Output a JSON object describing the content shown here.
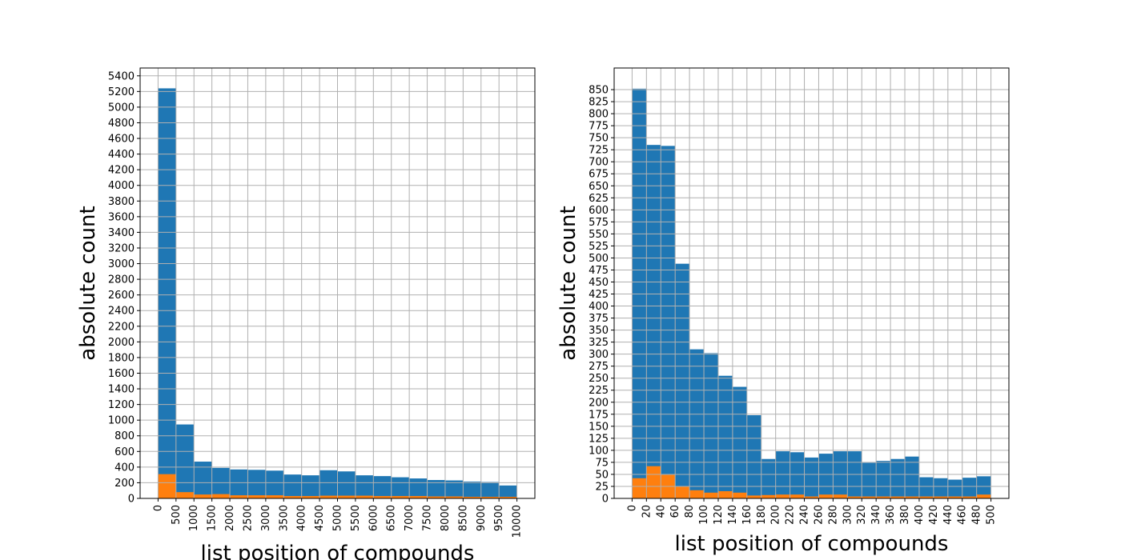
{
  "chart_data": [
    {
      "type": "bar",
      "histogram": true,
      "stacked": true,
      "xlabel": "list position of compounds",
      "ylabel": "absolute count",
      "xlim": [
        -500,
        10500
      ],
      "ylim": [
        0,
        5500
      ],
      "grid": true,
      "bin_edges": [
        0,
        500,
        1000,
        1500,
        2000,
        2500,
        3000,
        3500,
        4000,
        4500,
        5000,
        5500,
        6000,
        6500,
        7000,
        7500,
        8000,
        8500,
        9000,
        9500,
        10000
      ],
      "x_ticks": [
        0,
        500,
        1000,
        1500,
        2000,
        2500,
        3000,
        3500,
        4000,
        4500,
        5000,
        5500,
        6000,
        6500,
        7000,
        7500,
        8000,
        8500,
        9000,
        9500,
        10000
      ],
      "y_ticks": [
        0,
        200,
        400,
        600,
        800,
        1000,
        1200,
        1400,
        1600,
        1800,
        2000,
        2200,
        2400,
        2600,
        2800,
        3000,
        3200,
        3400,
        3600,
        3800,
        4000,
        4200,
        4400,
        4600,
        4800,
        5000,
        5200,
        5400
      ],
      "series": [
        {
          "color": "#1f77b4",
          "values": [
            5240,
            945,
            470,
            390,
            370,
            365,
            355,
            305,
            295,
            360,
            345,
            295,
            285,
            270,
            255,
            235,
            230,
            215,
            210,
            165
          ]
        },
        {
          "color": "#ff7f0e",
          "values": [
            310,
            80,
            50,
            55,
            40,
            40,
            40,
            30,
            30,
            35,
            35,
            35,
            30,
            30,
            30,
            25,
            25,
            20,
            20,
            20
          ]
        }
      ]
    },
    {
      "type": "bar",
      "histogram": true,
      "stacked": true,
      "xlabel": "list position of compounds",
      "ylabel": "absolute count",
      "xlim": [
        -25,
        525
      ],
      "ylim": [
        0,
        895
      ],
      "grid": true,
      "bin_edges": [
        0,
        20,
        40,
        60,
        80,
        100,
        120,
        140,
        160,
        180,
        200,
        220,
        240,
        260,
        280,
        300,
        320,
        340,
        360,
        380,
        400,
        420,
        440,
        460,
        480,
        500
      ],
      "x_ticks": [
        0,
        20,
        40,
        60,
        80,
        100,
        120,
        140,
        160,
        180,
        200,
        220,
        240,
        260,
        280,
        300,
        320,
        340,
        360,
        380,
        400,
        420,
        440,
        460,
        480,
        500
      ],
      "y_ticks": [
        0,
        25,
        50,
        75,
        100,
        125,
        150,
        175,
        200,
        225,
        250,
        275,
        300,
        325,
        350,
        375,
        400,
        425,
        450,
        475,
        500,
        525,
        550,
        575,
        600,
        625,
        650,
        675,
        700,
        725,
        750,
        775,
        800,
        825,
        850
      ],
      "series": [
        {
          "color": "#1f77b4",
          "values": [
            852,
            735,
            733,
            488,
            310,
            302,
            255,
            232,
            173,
            82,
            98,
            96,
            85,
            93,
            98,
            98,
            74,
            78,
            82,
            87,
            44,
            42,
            39,
            43,
            46
          ]
        },
        {
          "color": "#ff7f0e",
          "values": [
            42,
            67,
            49,
            25,
            17,
            12,
            15,
            12,
            6,
            7,
            8,
            8,
            4,
            8,
            8,
            4,
            4,
            4,
            4,
            4,
            4,
            4,
            4,
            4,
            8
          ]
        }
      ]
    }
  ]
}
